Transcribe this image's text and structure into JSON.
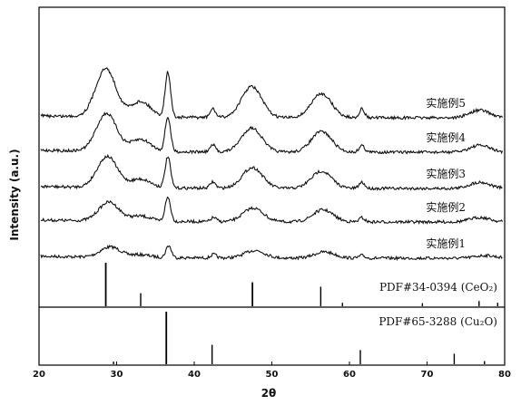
{
  "chart_data": {
    "type": "line",
    "xlabel": "2θ",
    "ylabel": "Intensity (a.u.)",
    "xlim": [
      20,
      80
    ],
    "x_ticks": [
      "20",
      "30",
      "40",
      "50",
      "60",
      "70",
      "80"
    ],
    "series": [
      {
        "name": "实施例1",
        "peaks": [
          {
            "x": 29.2,
            "h": 0.3
          },
          {
            "x": 33.1,
            "h": 0.08
          },
          {
            "x": 36.7,
            "h": 0.35
          },
          {
            "x": 42.5,
            "h": 0.1
          },
          {
            "x": 47.8,
            "h": 0.22
          },
          {
            "x": 56.8,
            "h": 0.18
          },
          {
            "x": 61.6,
            "h": 0.08
          },
          {
            "x": 77.5,
            "h": 0.08
          }
        ]
      },
      {
        "name": "实施例2",
        "peaks": [
          {
            "x": 29.0,
            "h": 0.55
          },
          {
            "x": 33.1,
            "h": 0.15
          },
          {
            "x": 36.6,
            "h": 0.7
          },
          {
            "x": 42.5,
            "h": 0.12
          },
          {
            "x": 47.6,
            "h": 0.4
          },
          {
            "x": 56.6,
            "h": 0.35
          },
          {
            "x": 61.6,
            "h": 0.12
          },
          {
            "x": 76.8,
            "h": 0.13
          }
        ]
      },
      {
        "name": "实施例3",
        "peaks": [
          {
            "x": 28.8,
            "h": 0.9
          },
          {
            "x": 33.1,
            "h": 0.25
          },
          {
            "x": 36.6,
            "h": 0.9
          },
          {
            "x": 42.4,
            "h": 0.18
          },
          {
            "x": 47.5,
            "h": 0.6
          },
          {
            "x": 56.4,
            "h": 0.5
          },
          {
            "x": 61.6,
            "h": 0.18
          },
          {
            "x": 76.8,
            "h": 0.18
          }
        ]
      },
      {
        "name": "实施例4",
        "peaks": [
          {
            "x": 28.7,
            "h": 1.1
          },
          {
            "x": 33.1,
            "h": 0.35
          },
          {
            "x": 36.6,
            "h": 1.0
          },
          {
            "x": 42.4,
            "h": 0.2
          },
          {
            "x": 47.4,
            "h": 0.7
          },
          {
            "x": 56.4,
            "h": 0.6
          },
          {
            "x": 61.6,
            "h": 0.2
          },
          {
            "x": 76.8,
            "h": 0.2
          }
        ]
      },
      {
        "name": "实施例5",
        "peaks": [
          {
            "x": 28.6,
            "h": 1.4
          },
          {
            "x": 33.1,
            "h": 0.45
          },
          {
            "x": 36.6,
            "h": 1.3
          },
          {
            "x": 42.4,
            "h": 0.25
          },
          {
            "x": 47.4,
            "h": 0.9
          },
          {
            "x": 56.4,
            "h": 0.7
          },
          {
            "x": 61.6,
            "h": 0.25
          },
          {
            "x": 76.8,
            "h": 0.22
          }
        ]
      }
    ],
    "reference_patterns": [
      {
        "label": "PDF#34-0394 (CeO₂)",
        "lines": [
          {
            "x": 28.6,
            "h": 1.0
          },
          {
            "x": 33.1,
            "h": 0.3
          },
          {
            "x": 47.5,
            "h": 0.55
          },
          {
            "x": 56.3,
            "h": 0.45
          },
          {
            "x": 59.1,
            "h": 0.08
          },
          {
            "x": 69.4,
            "h": 0.07
          },
          {
            "x": 76.7,
            "h": 0.12
          },
          {
            "x": 79.1,
            "h": 0.08
          }
        ]
      },
      {
        "label": "PDF#65-3288 (Cu₂O)",
        "lines": [
          {
            "x": 29.6,
            "h": 0.05
          },
          {
            "x": 36.4,
            "h": 1.0
          },
          {
            "x": 42.3,
            "h": 0.37
          },
          {
            "x": 61.4,
            "h": 0.27
          },
          {
            "x": 73.5,
            "h": 0.2
          },
          {
            "x": 77.4,
            "h": 0.06
          }
        ]
      }
    ]
  },
  "colors": {
    "line": "#111111",
    "axis": "#000000"
  }
}
